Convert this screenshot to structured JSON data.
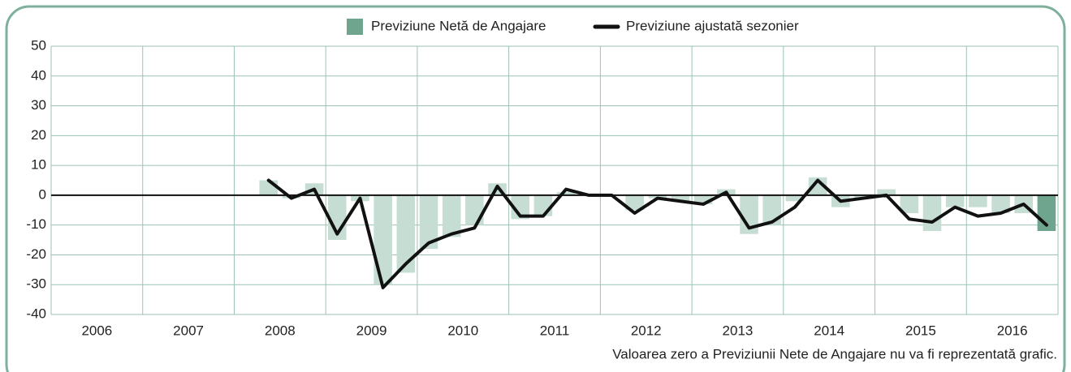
{
  "chart_data": {
    "type": "bar",
    "categories": [
      "2006",
      null,
      null,
      null,
      "2007",
      null,
      null,
      null,
      "2008",
      null,
      null,
      null,
      "2009",
      null,
      null,
      null,
      "2010",
      null,
      null,
      null,
      "2011",
      null,
      null,
      null,
      "2012",
      null,
      null,
      null,
      "2013",
      null,
      null,
      null,
      "2014",
      null,
      null,
      null,
      "2015",
      null,
      null,
      null,
      "2016",
      null,
      null,
      null
    ],
    "series": [
      {
        "name": "Previziune Netă de Angajare",
        "type": "bar",
        "color": "#c5ddd3",
        "highlight_color": "#6fa58f",
        "values": [
          null,
          null,
          null,
          null,
          null,
          null,
          null,
          null,
          null,
          5,
          -1,
          4,
          -15,
          -2,
          -30,
          -26,
          -18,
          -14,
          -10,
          4,
          -8,
          -7,
          1,
          0,
          0,
          -5,
          -1,
          -2,
          -3,
          2,
          -13,
          -10,
          -2,
          6,
          -4,
          -1,
          2,
          -6,
          -12,
          -4,
          -4,
          -6,
          -6,
          -12
        ]
      },
      {
        "name": "Previziune ajustată sezonier",
        "type": "line",
        "color": "#111111",
        "values": [
          null,
          null,
          null,
          null,
          null,
          null,
          null,
          null,
          null,
          5,
          -1,
          2,
          -13,
          -1,
          -31,
          -23,
          -16,
          -13,
          -11,
          3,
          -7,
          -7,
          2,
          0,
          0,
          -6,
          -1,
          -2,
          -3,
          1,
          -11,
          -9,
          -4,
          5,
          -2,
          -1,
          0,
          -8,
          -9,
          -4,
          -7,
          -6,
          -3,
          -10
        ]
      }
    ],
    "ylim": [
      -40,
      50
    ],
    "yticks": [
      -40,
      -30,
      -20,
      -10,
      0,
      10,
      20,
      30,
      40,
      50
    ],
    "grid": true,
    "legend": "top",
    "footnote": "Valoarea zero a Previziunii Nete de Angajare nu va fi reprezentată grafic."
  }
}
